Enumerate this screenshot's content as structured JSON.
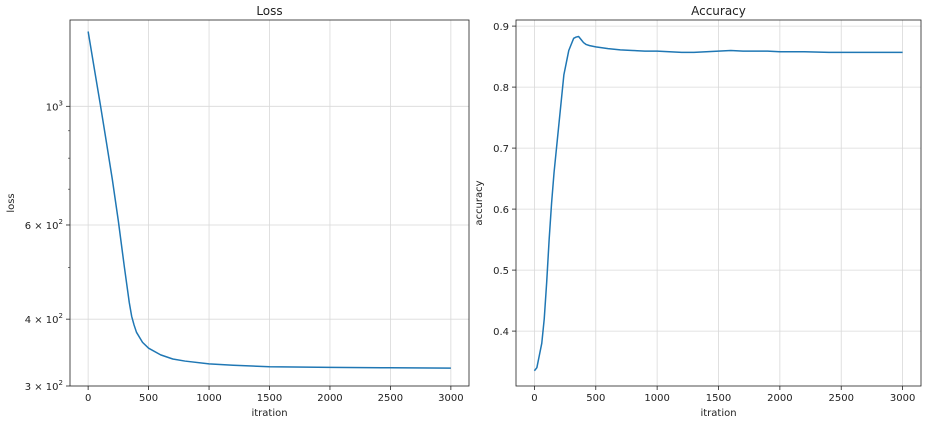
{
  "chart_data": [
    {
      "type": "line",
      "title": "Loss",
      "xlabel": "itration",
      "ylabel": "loss",
      "yscale": "log",
      "xlim": [
        -150,
        3150
      ],
      "ylim": [
        300,
        1450
      ],
      "grid": true,
      "x_ticks": [
        0,
        500,
        1000,
        1500,
        2000,
        2500,
        3000
      ],
      "y_ticks": [
        {
          "value": 300,
          "base": "3 × 10",
          "exp": "2"
        },
        {
          "value": 400,
          "base": "4 × 10",
          "exp": "2"
        },
        {
          "value": 600,
          "base": "6 × 10",
          "exp": "2"
        },
        {
          "value": 1000,
          "base": "10",
          "exp": "3"
        }
      ],
      "y_minor_ticks": [
        500,
        700,
        800,
        900
      ],
      "color": "#1f77b4",
      "series": [
        {
          "x": [
            0,
            50,
            100,
            150,
            200,
            250,
            300,
            340,
            360,
            380,
            400,
            450,
            500,
            600,
            700,
            800,
            1000,
            1200,
            1500,
            2000,
            2500,
            3000
          ],
          "values": [
            1380,
            1180,
            1010,
            860,
            730,
            610,
            500,
            430,
            405,
            390,
            378,
            362,
            353,
            343,
            337,
            334,
            330,
            328,
            326,
            325,
            324.5,
            324
          ]
        }
      ]
    },
    {
      "type": "line",
      "title": "Accuracy",
      "xlabel": "itration",
      "ylabel": "accuracy",
      "xlim": [
        -150,
        3150
      ],
      "ylim": [
        0.31,
        0.91
      ],
      "grid": true,
      "x_ticks": [
        0,
        500,
        1000,
        1500,
        2000,
        2500,
        3000
      ],
      "y_ticks": [
        0.4,
        0.5,
        0.6,
        0.7,
        0.8,
        0.9
      ],
      "color": "#1f77b4",
      "series": [
        {
          "x": [
            0,
            20,
            40,
            60,
            80,
            100,
            120,
            140,
            160,
            180,
            200,
            220,
            240,
            260,
            280,
            300,
            320,
            340,
            360,
            380,
            400,
            420,
            450,
            500,
            600,
            700,
            800,
            900,
            1000,
            1100,
            1200,
            1300,
            1400,
            1500,
            1600,
            1700,
            1800,
            1900,
            2000,
            2200,
            2400,
            2600,
            2800,
            3000
          ],
          "values": [
            0.335,
            0.34,
            0.36,
            0.38,
            0.42,
            0.48,
            0.55,
            0.61,
            0.66,
            0.7,
            0.74,
            0.78,
            0.82,
            0.84,
            0.86,
            0.87,
            0.88,
            0.882,
            0.883,
            0.878,
            0.873,
            0.87,
            0.868,
            0.866,
            0.863,
            0.861,
            0.86,
            0.859,
            0.859,
            0.858,
            0.857,
            0.857,
            0.858,
            0.859,
            0.86,
            0.859,
            0.859,
            0.859,
            0.858,
            0.858,
            0.857,
            0.857,
            0.857,
            0.857
          ]
        }
      ]
    }
  ]
}
